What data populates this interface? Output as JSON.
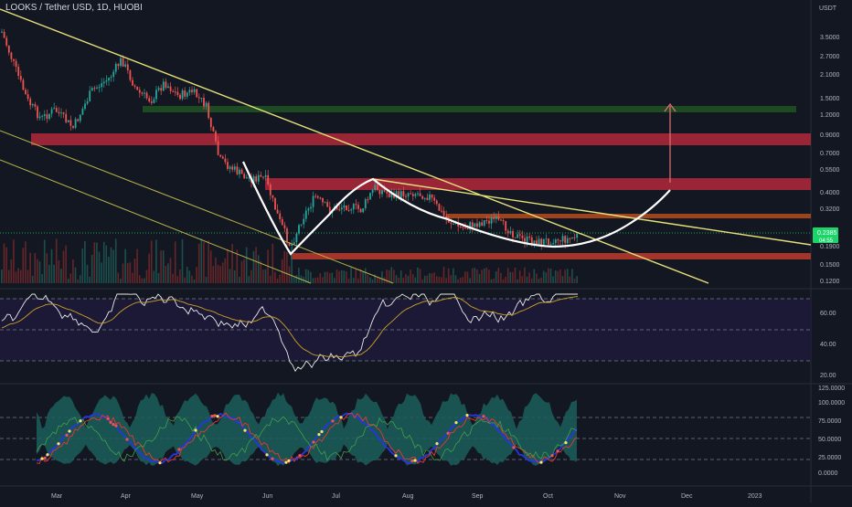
{
  "header": {
    "title": "LOOKS / Tether USD, 1D, HUOBI"
  },
  "price_axis": {
    "currency": "USDT",
    "ticks": [
      "3.5000",
      "2.7000",
      "2.1000",
      "1.5000",
      "1.2000",
      "0.9000",
      "0.7000",
      "0.5500",
      "0.4000",
      "0.3200",
      "0.2385",
      "0.1900",
      "0.1500",
      "0.1200"
    ],
    "current_price": "0.2385",
    "countdown": "04:55"
  },
  "rsi_axis": {
    "ticks": [
      "60.00",
      "40.00",
      "20.00"
    ]
  },
  "osc_axis": {
    "ticks": [
      "125.0000",
      "100.0000",
      "75.0000",
      "50.0000",
      "25.0000",
      "0.0000"
    ]
  },
  "time_axis": {
    "ticks": [
      "Mar",
      "Apr",
      "May",
      "Jun",
      "Jul",
      "Aug",
      "Sep",
      "Oct",
      "Nov",
      "Dec",
      "2023"
    ]
  },
  "colors": {
    "background": "#131722",
    "up": "#26a69a",
    "down": "#ef5350",
    "trendline": "#e6e07a",
    "resistance_zone": "#b2283a",
    "support_zone": "#c0392b",
    "target_zone": "#2e7d32",
    "pattern": "#ffffff",
    "arrow": "#e57373",
    "price_tag": "#1bd46a",
    "rsi_band": "#1e1a3a",
    "osc_teal": "#1b5e5a",
    "osc_blue": "#2636e0",
    "osc_red": "#e53935"
  }
}
